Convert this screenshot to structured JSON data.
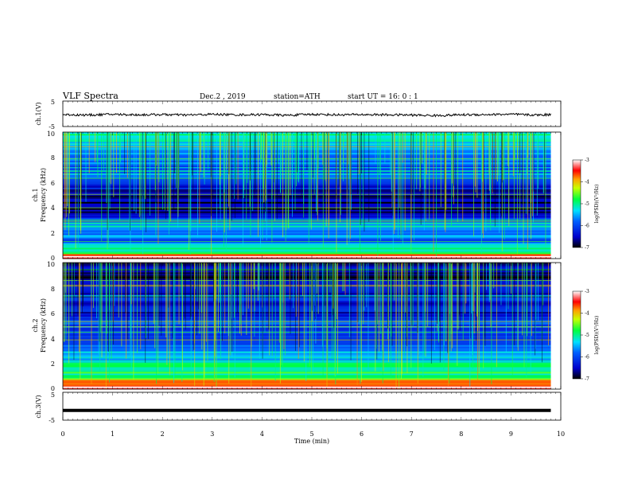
{
  "header": {
    "title": "VLF  Spectra",
    "date": "Dec.2  , 2019",
    "station": "station=ATH",
    "start": "start  UT  =    16: 0   : 1"
  },
  "chart_data": [
    {
      "type": "line",
      "name": "ch1-voltage",
      "ylabel": "ch.1(V)",
      "ylim": [
        -5,
        5
      ],
      "yticks": [
        -5,
        5
      ],
      "xlim": [
        0,
        10
      ],
      "note_level": -0.3,
      "x": [
        0,
        0.5,
        1,
        1.5,
        2,
        2.5,
        3,
        3.5,
        4,
        4.5,
        5,
        5.5,
        6,
        6.5,
        7,
        7.5,
        8,
        8.5,
        9,
        9.5,
        9.8
      ],
      "y": [
        -0.3,
        -0.5,
        -0.2,
        -0.4,
        -0.3,
        -0.5,
        -0.2,
        -0.4,
        -0.3,
        -0.6,
        -0.2,
        -0.4,
        -0.3,
        -0.4,
        -0.5,
        -0.7,
        -0.4,
        -0.3,
        -0.2,
        -0.5,
        -0.3
      ]
    },
    {
      "type": "heatmap",
      "name": "ch1-spectrogram",
      "ylabel": "ch.1\nFrequency  (kHz)",
      "ylim": [
        0,
        10
      ],
      "yticks": [
        0,
        2,
        4,
        6,
        8,
        10
      ],
      "xlim": [
        0,
        10
      ],
      "data_xmax": 9.8,
      "colorbar": {
        "label": "log(PSD)(V²/Hz)",
        "ticks": [
          -3,
          -4,
          -5,
          -6,
          -7
        ],
        "range": [
          -7,
          -3
        ]
      },
      "band_levels": [
        {
          "f": 0.2,
          "v": -3.6
        },
        {
          "f": 0.5,
          "v": -4.6
        },
        {
          "f": 0.9,
          "v": -5.2
        },
        {
          "f": 1.4,
          "v": -5.9
        },
        {
          "f": 2.0,
          "v": -5.6
        },
        {
          "f": 2.6,
          "v": -5.3
        },
        {
          "f": 3.2,
          "v": -6.3
        },
        {
          "f": 4.0,
          "v": -6.9
        },
        {
          "f": 5.0,
          "v": -6.6
        },
        {
          "f": 5.8,
          "v": -6.4
        },
        {
          "f": 6.6,
          "v": -5.6
        },
        {
          "f": 7.4,
          "v": -5.9
        },
        {
          "f": 8.3,
          "v": -5.5
        },
        {
          "f": 9.3,
          "v": -5.2
        },
        {
          "f": 10.0,
          "v": -5.1
        }
      ]
    },
    {
      "type": "heatmap",
      "name": "ch2-spectrogram",
      "ylabel": "ch.2\nFrequency  (kHz)",
      "ylim": [
        0,
        10
      ],
      "yticks": [
        0,
        2,
        4,
        6,
        8,
        10
      ],
      "xlim": [
        0,
        10
      ],
      "data_xmax": 9.8,
      "colorbar": {
        "label": "log(PSD)(V²/Hz)",
        "ticks": [
          -3,
          -4,
          -5,
          -6,
          -7
        ],
        "range": [
          -7,
          -3
        ]
      },
      "band_levels": [
        {
          "f": 0.2,
          "v": -3.6
        },
        {
          "f": 0.6,
          "v": -3.9
        },
        {
          "f": 1.0,
          "v": -4.8
        },
        {
          "f": 1.6,
          "v": -5.0
        },
        {
          "f": 2.2,
          "v": -5.3
        },
        {
          "f": 2.8,
          "v": -5.4
        },
        {
          "f": 3.5,
          "v": -6.0
        },
        {
          "f": 4.3,
          "v": -6.4
        },
        {
          "f": 5.0,
          "v": -5.9
        },
        {
          "f": 5.8,
          "v": -6.5
        },
        {
          "f": 6.6,
          "v": -6.2
        },
        {
          "f": 7.4,
          "v": -6.4
        },
        {
          "f": 8.3,
          "v": -6.7
        },
        {
          "f": 9.3,
          "v": -6.6
        },
        {
          "f": 10.0,
          "v": -6.5
        }
      ]
    },
    {
      "type": "line",
      "name": "ch3-voltage",
      "ylabel": "ch.3(V)",
      "ylim": [
        -5,
        5
      ],
      "yticks": [
        -5,
        5
      ],
      "xlim": [
        0,
        10
      ],
      "x": [
        0,
        9.8
      ],
      "y": [
        -1.5,
        -1.5
      ]
    }
  ],
  "xaxis": {
    "label": "Time  (min)",
    "ticks": [
      "0",
      "1",
      "2",
      "3",
      "4",
      "5",
      "6",
      "7",
      "8",
      "9",
      "10"
    ]
  },
  "colors": {
    "line": "#000000",
    "colormap": [
      "#000000",
      "#0000ff",
      "#00ffff",
      "#00ff00",
      "#ffff00",
      "#ff0000",
      "#ffffff"
    ]
  }
}
